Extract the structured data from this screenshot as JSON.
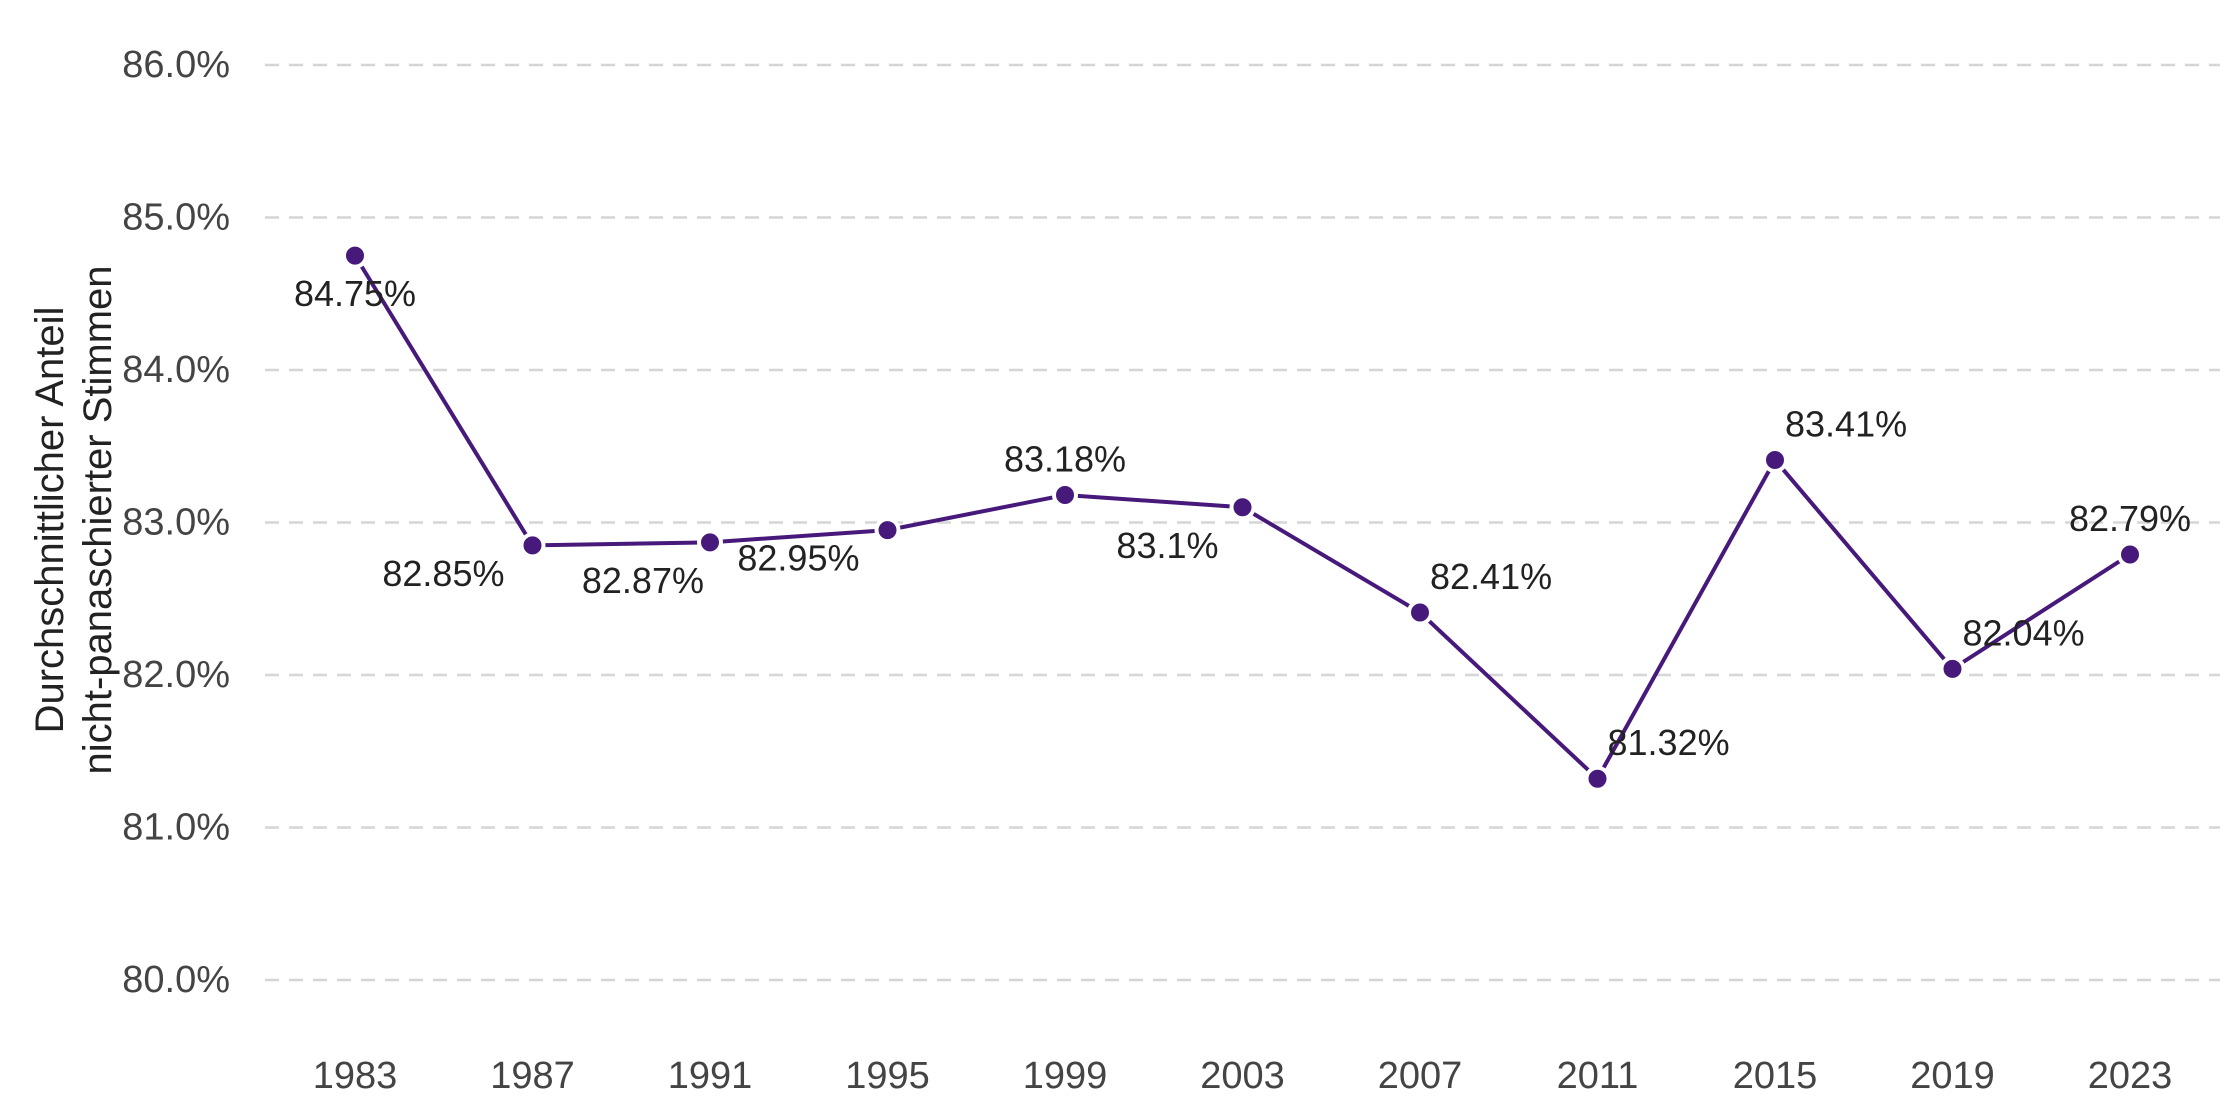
{
  "colors": {
    "series": "#46197a",
    "grid": "#d6d6d6",
    "tick_text": "#444444",
    "label_text": "#222222",
    "background": "#ffffff"
  },
  "chart_data": {
    "type": "line",
    "x": [
      "1983",
      "1987",
      "1991",
      "1995",
      "1999",
      "2003",
      "2007",
      "2011",
      "2015",
      "2019",
      "2023"
    ],
    "series": [
      {
        "values": [
          84.75,
          82.85,
          82.87,
          82.95,
          83.18,
          83.1,
          82.41,
          81.32,
          83.41,
          82.04,
          82.79
        ],
        "labels": [
          "84.75%",
          "82.85%",
          "82.87%",
          "82.95%",
          "83.18%",
          "83.1%",
          "82.41%",
          "81.32%",
          "83.41%",
          "82.04%",
          "82.79%"
        ],
        "label_placement": [
          "below",
          "below-left",
          "below-left",
          "below-left",
          "above",
          "below-left",
          "above-right",
          "above-right",
          "above-right",
          "above-right",
          "above"
        ]
      }
    ],
    "ylabel_lines": [
      "Durchschnittlicher Anteil",
      "nicht-panaschierter Stimmen"
    ],
    "xlabel": "",
    "ylim": [
      80,
      86
    ],
    "yticks": [
      80,
      81,
      82,
      83,
      84,
      85,
      86
    ],
    "ytick_labels": [
      "80.0%",
      "81.0%",
      "82.0%",
      "83.0%",
      "84.0%",
      "85.0%",
      "86.0%"
    ],
    "grid": true,
    "legend": false
  }
}
